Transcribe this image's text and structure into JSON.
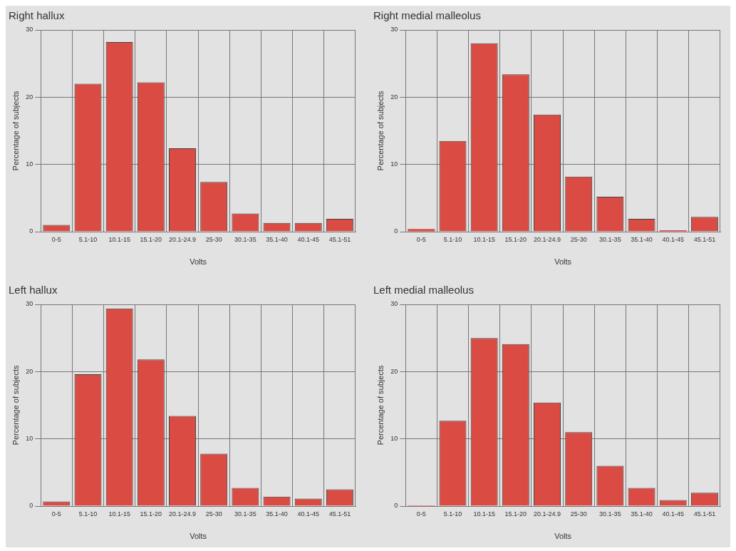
{
  "chart_data": [
    {
      "type": "bar",
      "title": "Right hallux",
      "xlabel": "Volts",
      "ylabel": "Percentage of subjects",
      "categories": [
        "0-5",
        "5.1-10",
        "10.1-15",
        "15.1-20",
        "20.1-24.9",
        "25-30",
        "30.1-35",
        "35.1-40",
        "40.1-45",
        "45.1-51"
      ],
      "values": [
        1.0,
        22.0,
        28.2,
        22.2,
        12.4,
        7.4,
        2.7,
        1.3,
        1.3,
        1.9
      ],
      "color": "#d94b43",
      "ylim": [
        0,
        30
      ],
      "yticks": [
        0,
        10,
        20,
        30
      ],
      "grid": true,
      "legend": false
    },
    {
      "type": "bar",
      "title": "Right medial malleolus",
      "xlabel": "Volts",
      "ylabel": "Percentage of subjects",
      "categories": [
        "0-5",
        "5.1-10",
        "10.1-15",
        "15.1-20",
        "20.1-24.9",
        "25-30",
        "30.1-35",
        "35.1-40",
        "40.1-45",
        "45.1-51"
      ],
      "values": [
        0.4,
        13.5,
        28.0,
        23.4,
        17.4,
        8.2,
        5.2,
        1.9,
        0.2,
        2.2
      ],
      "color": "#d94b43",
      "ylim": [
        0,
        30
      ],
      "yticks": [
        0,
        10,
        20,
        30
      ],
      "grid": true,
      "legend": false
    },
    {
      "type": "bar",
      "title": "Left hallux",
      "xlabel": "Volts",
      "ylabel": "Percentage of subjects",
      "categories": [
        "0-5",
        "5.1-10",
        "10.1-15",
        "15.1-20",
        "20.1-24.9",
        "25-30",
        "30.1-35",
        "35.1-40",
        "40.1-45",
        "45.1-51"
      ],
      "values": [
        0.7,
        19.6,
        29.4,
        21.8,
        13.4,
        7.8,
        2.7,
        1.4,
        1.1,
        2.5
      ],
      "color": "#d94b43",
      "ylim": [
        0,
        30
      ],
      "yticks": [
        0,
        10,
        20,
        30
      ],
      "grid": true,
      "legend": false
    },
    {
      "type": "bar",
      "title": "Left medial malleolus",
      "xlabel": "Volts",
      "ylabel": "Percentage of subjects",
      "categories": [
        "0-5",
        "5.1-10",
        "10.1-15",
        "15.1-20",
        "20.1-24.9",
        "25-30",
        "30.1-35",
        "35.1-40",
        "40.1-45",
        "45.1-51"
      ],
      "values": [
        0.1,
        12.7,
        25.0,
        24.1,
        15.4,
        11.0,
        6.0,
        2.7,
        0.9,
        2.0
      ],
      "color": "#d94b43",
      "ylim": [
        0,
        30
      ],
      "yticks": [
        0,
        10,
        20,
        30
      ],
      "grid": true,
      "legend": false
    }
  ]
}
